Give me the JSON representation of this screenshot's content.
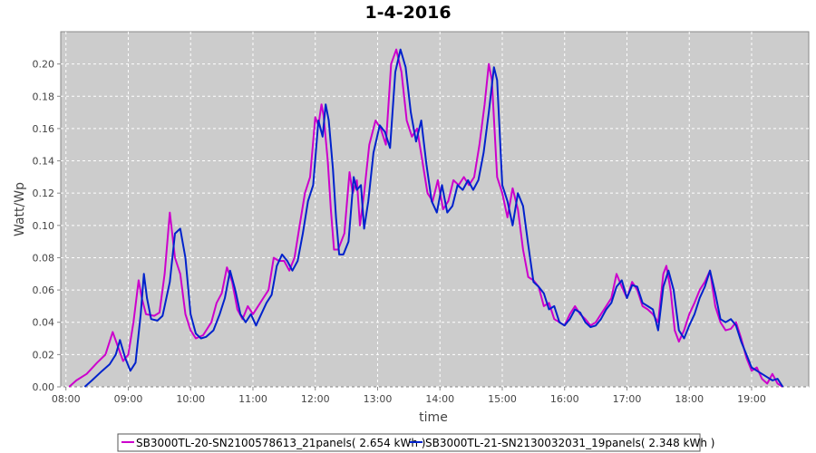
{
  "chart_data": {
    "type": "line",
    "title": "1-4-2016",
    "xlabel": "time",
    "ylabel": "Watt/Wp",
    "xlim": [
      "07:55",
      "19:55"
    ],
    "ylim": [
      0,
      0.22
    ],
    "x_ticks": [
      "08:00",
      "09:00",
      "10:00",
      "11:00",
      "12:00",
      "13:00",
      "14:00",
      "15:00",
      "16:00",
      "17:00",
      "18:00",
      "19:00"
    ],
    "y_ticks": [
      "0.00",
      "0.02",
      "0.04",
      "0.06",
      "0.08",
      "0.10",
      "0.12",
      "0.14",
      "0.16",
      "0.18",
      "0.20"
    ],
    "grid": true,
    "legend_position": "bottom",
    "series": [
      {
        "name": "SB3000TL-20-SN2100578613_21panels( 2.654 kWh )",
        "color": "#cc00cc",
        "points": [
          [
            "08:03",
            0.0
          ],
          [
            "08:10",
            0.004
          ],
          [
            "08:20",
            0.008
          ],
          [
            "08:30",
            0.015
          ],
          [
            "08:38",
            0.02
          ],
          [
            "08:45",
            0.034
          ],
          [
            "08:50",
            0.025
          ],
          [
            "08:55",
            0.016
          ],
          [
            "09:00",
            0.02
          ],
          [
            "09:05",
            0.04
          ],
          [
            "09:10",
            0.066
          ],
          [
            "09:13",
            0.055
          ],
          [
            "09:17",
            0.045
          ],
          [
            "09:25",
            0.044
          ],
          [
            "09:30",
            0.046
          ],
          [
            "09:35",
            0.07
          ],
          [
            "09:40",
            0.108
          ],
          [
            "09:45",
            0.08
          ],
          [
            "09:50",
            0.07
          ],
          [
            "09:55",
            0.045
          ],
          [
            "10:00",
            0.035
          ],
          [
            "10:05",
            0.03
          ],
          [
            "10:12",
            0.032
          ],
          [
            "10:20",
            0.04
          ],
          [
            "10:25",
            0.052
          ],
          [
            "10:30",
            0.058
          ],
          [
            "10:35",
            0.074
          ],
          [
            "10:40",
            0.065
          ],
          [
            "10:45",
            0.048
          ],
          [
            "10:50",
            0.042
          ],
          [
            "10:55",
            0.05
          ],
          [
            "11:00",
            0.045
          ],
          [
            "11:05",
            0.05
          ],
          [
            "11:10",
            0.055
          ],
          [
            "11:15",
            0.06
          ],
          [
            "11:20",
            0.08
          ],
          [
            "11:25",
            0.078
          ],
          [
            "11:30",
            0.078
          ],
          [
            "11:35",
            0.072
          ],
          [
            "11:40",
            0.08
          ],
          [
            "11:45",
            0.1
          ],
          [
            "11:50",
            0.12
          ],
          [
            "11:55",
            0.13
          ],
          [
            "12:00",
            0.167
          ],
          [
            "12:03",
            0.162
          ],
          [
            "12:06",
            0.175
          ],
          [
            "12:08",
            0.168
          ],
          [
            "12:12",
            0.14
          ],
          [
            "12:15",
            0.11
          ],
          [
            "12:18",
            0.085
          ],
          [
            "12:22",
            0.085
          ],
          [
            "12:28",
            0.095
          ],
          [
            "12:33",
            0.133
          ],
          [
            "12:36",
            0.12
          ],
          [
            "12:40",
            0.128
          ],
          [
            "12:43",
            0.1
          ],
          [
            "12:47",
            0.12
          ],
          [
            "12:52",
            0.15
          ],
          [
            "12:58",
            0.165
          ],
          [
            "13:03",
            0.16
          ],
          [
            "13:08",
            0.15
          ],
          [
            "13:13",
            0.2
          ],
          [
            "13:18",
            0.209
          ],
          [
            "13:23",
            0.195
          ],
          [
            "13:28",
            0.165
          ],
          [
            "13:33",
            0.155
          ],
          [
            "13:38",
            0.16
          ],
          [
            "13:43",
            0.14
          ],
          [
            "13:48",
            0.12
          ],
          [
            "13:53",
            0.115
          ],
          [
            "13:58",
            0.128
          ],
          [
            "14:03",
            0.11
          ],
          [
            "14:08",
            0.115
          ],
          [
            "14:13",
            0.128
          ],
          [
            "14:18",
            0.125
          ],
          [
            "14:23",
            0.13
          ],
          [
            "14:28",
            0.125
          ],
          [
            "14:33",
            0.13
          ],
          [
            "14:38",
            0.15
          ],
          [
            "14:43",
            0.175
          ],
          [
            "14:47",
            0.2
          ],
          [
            "14:50",
            0.19
          ],
          [
            "14:55",
            0.13
          ],
          [
            "15:00",
            0.12
          ],
          [
            "15:05",
            0.105
          ],
          [
            "15:10",
            0.123
          ],
          [
            "15:15",
            0.11
          ],
          [
            "15:20",
            0.085
          ],
          [
            "15:25",
            0.068
          ],
          [
            "15:30",
            0.066
          ],
          [
            "15:35",
            0.062
          ],
          [
            "15:40",
            0.05
          ],
          [
            "15:45",
            0.052
          ],
          [
            "15:50",
            0.042
          ],
          [
            "15:55",
            0.04
          ],
          [
            "16:00",
            0.038
          ],
          [
            "16:05",
            0.045
          ],
          [
            "16:10",
            0.05
          ],
          [
            "16:15",
            0.045
          ],
          [
            "16:20",
            0.042
          ],
          [
            "16:25",
            0.038
          ],
          [
            "16:30",
            0.04
          ],
          [
            "16:35",
            0.045
          ],
          [
            "16:40",
            0.05
          ],
          [
            "16:45",
            0.055
          ],
          [
            "16:50",
            0.07
          ],
          [
            "16:55",
            0.062
          ],
          [
            "17:00",
            0.055
          ],
          [
            "17:05",
            0.065
          ],
          [
            "17:10",
            0.06
          ],
          [
            "17:15",
            0.05
          ],
          [
            "17:20",
            0.048
          ],
          [
            "17:25",
            0.045
          ],
          [
            "17:30",
            0.04
          ],
          [
            "17:35",
            0.07
          ],
          [
            "17:38",
            0.075
          ],
          [
            "17:42",
            0.06
          ],
          [
            "17:46",
            0.035
          ],
          [
            "17:50",
            0.028
          ],
          [
            "17:55",
            0.035
          ],
          [
            "18:00",
            0.045
          ],
          [
            "18:05",
            0.052
          ],
          [
            "18:10",
            0.06
          ],
          [
            "18:15",
            0.065
          ],
          [
            "18:20",
            0.072
          ],
          [
            "18:25",
            0.05
          ],
          [
            "18:30",
            0.04
          ],
          [
            "18:35",
            0.035
          ],
          [
            "18:40",
            0.036
          ],
          [
            "18:45",
            0.04
          ],
          [
            "18:50",
            0.03
          ],
          [
            "18:55",
            0.018
          ],
          [
            "19:00",
            0.01
          ],
          [
            "19:05",
            0.012
          ],
          [
            "19:10",
            0.005
          ],
          [
            "19:15",
            0.002
          ],
          [
            "19:20",
            0.008
          ],
          [
            "19:25",
            0.002
          ],
          [
            "19:30",
            0.0
          ]
        ]
      },
      {
        "name": "SB3000TL-21-SN2130032031_19panels( 2.348 kWh )",
        "color": "#0022cc",
        "points": [
          [
            "08:18",
            0.0
          ],
          [
            "08:25",
            0.004
          ],
          [
            "08:35",
            0.01
          ],
          [
            "08:42",
            0.014
          ],
          [
            "08:48",
            0.02
          ],
          [
            "08:52",
            0.029
          ],
          [
            "08:57",
            0.018
          ],
          [
            "09:02",
            0.01
          ],
          [
            "09:07",
            0.015
          ],
          [
            "09:12",
            0.045
          ],
          [
            "09:15",
            0.07
          ],
          [
            "09:18",
            0.055
          ],
          [
            "09:22",
            0.042
          ],
          [
            "09:28",
            0.041
          ],
          [
            "09:33",
            0.044
          ],
          [
            "09:40",
            0.065
          ],
          [
            "09:45",
            0.095
          ],
          [
            "09:50",
            0.098
          ],
          [
            "09:55",
            0.08
          ],
          [
            "10:00",
            0.045
          ],
          [
            "10:05",
            0.033
          ],
          [
            "10:10",
            0.03
          ],
          [
            "10:15",
            0.031
          ],
          [
            "10:22",
            0.035
          ],
          [
            "10:28",
            0.045
          ],
          [
            "10:33",
            0.055
          ],
          [
            "10:38",
            0.072
          ],
          [
            "10:43",
            0.06
          ],
          [
            "10:48",
            0.045
          ],
          [
            "10:53",
            0.04
          ],
          [
            "10:58",
            0.045
          ],
          [
            "11:03",
            0.038
          ],
          [
            "11:08",
            0.045
          ],
          [
            "11:13",
            0.052
          ],
          [
            "11:18",
            0.057
          ],
          [
            "11:23",
            0.075
          ],
          [
            "11:28",
            0.082
          ],
          [
            "11:33",
            0.078
          ],
          [
            "11:38",
            0.072
          ],
          [
            "11:43",
            0.078
          ],
          [
            "11:48",
            0.095
          ],
          [
            "11:53",
            0.115
          ],
          [
            "11:58",
            0.125
          ],
          [
            "12:03",
            0.165
          ],
          [
            "12:07",
            0.155
          ],
          [
            "12:10",
            0.175
          ],
          [
            "12:13",
            0.165
          ],
          [
            "12:17",
            0.135
          ],
          [
            "12:20",
            0.105
          ],
          [
            "12:23",
            0.082
          ],
          [
            "12:27",
            0.082
          ],
          [
            "12:32",
            0.09
          ],
          [
            "12:37",
            0.13
          ],
          [
            "12:40",
            0.122
          ],
          [
            "12:44",
            0.125
          ],
          [
            "12:47",
            0.098
          ],
          [
            "12:51",
            0.115
          ],
          [
            "12:56",
            0.145
          ],
          [
            "13:02",
            0.162
          ],
          [
            "13:07",
            0.158
          ],
          [
            "13:12",
            0.148
          ],
          [
            "13:17",
            0.195
          ],
          [
            "13:22",
            0.209
          ],
          [
            "13:27",
            0.198
          ],
          [
            "13:32",
            0.17
          ],
          [
            "13:37",
            0.152
          ],
          [
            "13:42",
            0.165
          ],
          [
            "13:47",
            0.138
          ],
          [
            "13:52",
            0.115
          ],
          [
            "13:57",
            0.108
          ],
          [
            "14:02",
            0.125
          ],
          [
            "14:07",
            0.108
          ],
          [
            "14:12",
            0.112
          ],
          [
            "14:17",
            0.125
          ],
          [
            "14:22",
            0.122
          ],
          [
            "14:27",
            0.128
          ],
          [
            "14:32",
            0.122
          ],
          [
            "14:37",
            0.128
          ],
          [
            "14:42",
            0.145
          ],
          [
            "14:47",
            0.17
          ],
          [
            "14:52",
            0.198
          ],
          [
            "14:55",
            0.19
          ],
          [
            "15:00",
            0.125
          ],
          [
            "15:05",
            0.115
          ],
          [
            "15:10",
            0.1
          ],
          [
            "15:15",
            0.12
          ],
          [
            "15:20",
            0.112
          ],
          [
            "15:25",
            0.088
          ],
          [
            "15:30",
            0.065
          ],
          [
            "15:35",
            0.062
          ],
          [
            "15:40",
            0.058
          ],
          [
            "15:45",
            0.048
          ],
          [
            "15:50",
            0.05
          ],
          [
            "15:55",
            0.04
          ],
          [
            "16:00",
            0.038
          ],
          [
            "16:05",
            0.042
          ],
          [
            "16:10",
            0.048
          ],
          [
            "16:15",
            0.046
          ],
          [
            "16:20",
            0.04
          ],
          [
            "16:25",
            0.037
          ],
          [
            "16:30",
            0.038
          ],
          [
            "16:35",
            0.042
          ],
          [
            "16:40",
            0.048
          ],
          [
            "16:45",
            0.052
          ],
          [
            "16:50",
            0.062
          ],
          [
            "16:55",
            0.066
          ],
          [
            "17:00",
            0.055
          ],
          [
            "17:05",
            0.063
          ],
          [
            "17:10",
            0.062
          ],
          [
            "17:15",
            0.052
          ],
          [
            "17:20",
            0.05
          ],
          [
            "17:25",
            0.048
          ],
          [
            "17:30",
            0.035
          ],
          [
            "17:35",
            0.062
          ],
          [
            "17:40",
            0.072
          ],
          [
            "17:45",
            0.06
          ],
          [
            "17:50",
            0.035
          ],
          [
            "17:55",
            0.03
          ],
          [
            "18:00",
            0.038
          ],
          [
            "18:05",
            0.045
          ],
          [
            "18:10",
            0.055
          ],
          [
            "18:15",
            0.062
          ],
          [
            "18:20",
            0.072
          ],
          [
            "18:25",
            0.058
          ],
          [
            "18:30",
            0.042
          ],
          [
            "18:35",
            0.04
          ],
          [
            "18:40",
            0.042
          ],
          [
            "18:45",
            0.038
          ],
          [
            "18:50",
            0.028
          ],
          [
            "18:55",
            0.02
          ],
          [
            "19:00",
            0.012
          ],
          [
            "19:05",
            0.01
          ],
          [
            "19:10",
            0.008
          ],
          [
            "19:15",
            0.006
          ],
          [
            "19:20",
            0.004
          ],
          [
            "19:25",
            0.005
          ],
          [
            "19:30",
            0.0
          ]
        ]
      }
    ]
  }
}
